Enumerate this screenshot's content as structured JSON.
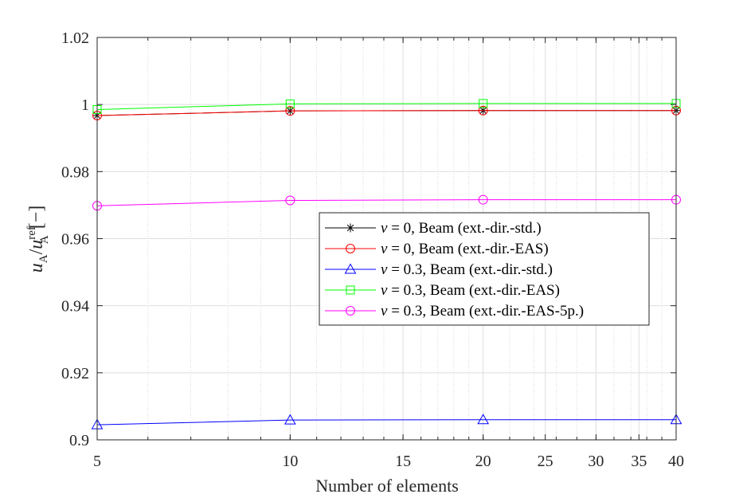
{
  "chart_data": {
    "type": "line",
    "xscale": "log",
    "xlabel": "Number of elements",
    "ylabel": {
      "var": "u",
      "sub": "A",
      "slash": "/",
      "var2": "u",
      "sub2": "A",
      "sup2": "ref",
      "unit": "[−]"
    },
    "xlim": [
      5,
      40
    ],
    "ylim": [
      0.9,
      1.02
    ],
    "grid": true,
    "xticks": [
      5,
      10,
      15,
      20,
      25,
      30,
      35,
      40
    ],
    "xtick_labels": [
      "5",
      "10",
      "15",
      "20",
      "25",
      "30",
      "35",
      "40"
    ],
    "yticks": [
      0.9,
      0.92,
      0.94,
      0.96,
      0.98,
      1.0,
      1.02
    ],
    "ytick_labels": [
      "0.9",
      "0.92",
      "0.94",
      "0.96",
      "0.98",
      "1",
      "1.02"
    ],
    "legend_position": "center-right",
    "x": [
      5,
      10,
      20,
      40
    ],
    "series": [
      {
        "label": "ν = 0, Beam (ext.-dir.-std.)",
        "symbol": "ν",
        "eq": " = 0, Beam (ext.-dir.-std.)",
        "color": "#000000",
        "marker": "asterisk",
        "values": [
          0.9967,
          0.9981,
          0.9982,
          0.9982
        ]
      },
      {
        "label": "ν = 0, Beam (ext.-dir.-EAS)",
        "symbol": "ν",
        "eq": " = 0, Beam (ext.-dir.-EAS)",
        "color": "#ff0000",
        "marker": "circle",
        "values": [
          0.9967,
          0.9981,
          0.9982,
          0.9982
        ]
      },
      {
        "label": "ν = 0.3, Beam (ext.-dir.-std.)",
        "symbol": "ν",
        "eq": " = 0.3, Beam (ext.-dir.-std.)",
        "color": "#0000ff",
        "marker": "triangle",
        "values": [
          0.9045,
          0.9059,
          0.906,
          0.906
        ]
      },
      {
        "label": "ν = 0.3, Beam (ext.-dir.-EAS)",
        "symbol": "ν",
        "eq": " = 0.3, Beam (ext.-dir.-EAS)",
        "color": "#00ff00",
        "marker": "square",
        "values": [
          0.9985,
          1.0002,
          1.0003,
          1.0003
        ]
      },
      {
        "label": "ν = 0.3, Beam (ext.-dir.-EAS-5p.)",
        "symbol": "ν",
        "eq": " = 0.3, Beam (ext.-dir.-EAS-5p.)",
        "color": "#ff00ff",
        "marker": "circle",
        "values": [
          0.9698,
          0.9714,
          0.9716,
          0.9716
        ]
      }
    ]
  }
}
